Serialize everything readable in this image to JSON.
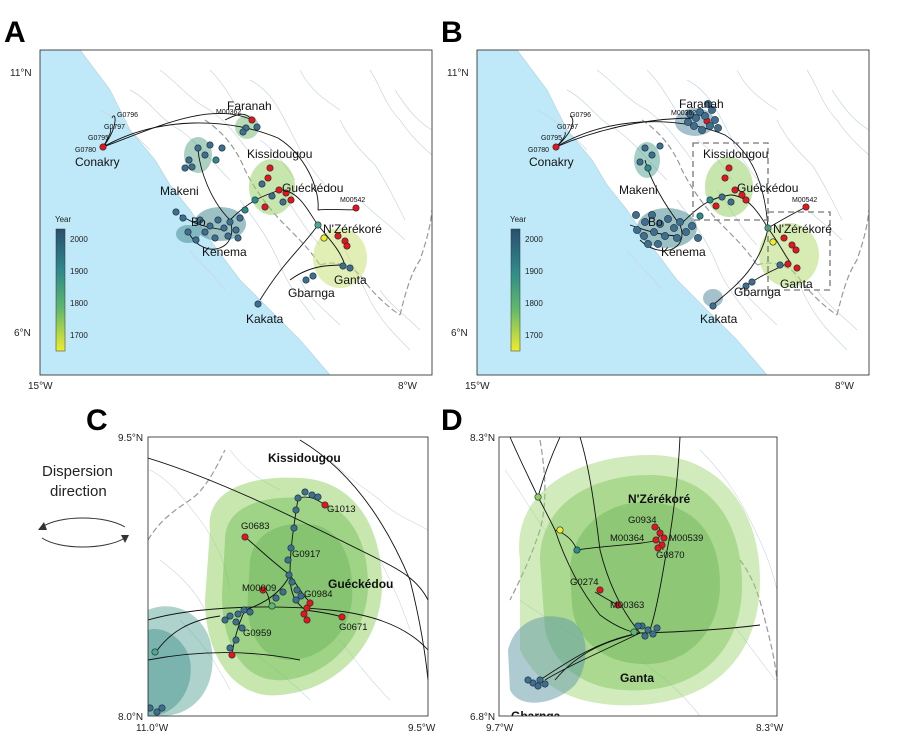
{
  "panels": {
    "A": {
      "letter": "A",
      "lat_tick_top": "11°N",
      "lat_tick_bottom": "6°N",
      "lon_tick_left": "15°W",
      "lon_tick_right": "8°W",
      "cities": {
        "conakry": "Conakry",
        "faranah": "Faranah",
        "kissidougou": "Kissidougou",
        "makeni": "Makeni",
        "gueckedou": "Guéckédou",
        "bo": "Bo",
        "kenema": "Kenema",
        "nzerekore": "N'Zérékoré",
        "ganta": "Ganta",
        "gbarnga": "Gbarnga",
        "kakata": "Kakata"
      },
      "sequences": {
        "g0796": "G0796",
        "g0797": "G0797",
        "g0795": "G0795",
        "g0780": "G0780",
        "m00362": "M00362",
        "m00542": "M00542"
      },
      "legend": {
        "title": "Year",
        "ticks": [
          "2000",
          "1900",
          "1800",
          "1700"
        ]
      }
    },
    "B": {
      "letter": "B",
      "lat_tick_top": "11°N",
      "lat_tick_bottom": "6°N",
      "lon_tick_left": "15°W",
      "lon_tick_right": "8°W",
      "cities": {
        "conakry": "Conakry",
        "faranah": "Faranah",
        "kissidougou": "Kissidougou",
        "makeni": "Makeni",
        "gueckedou": "Guéckédou",
        "bo": "Bo",
        "kenema": "Kenema",
        "nzerekore": "N'Zérékoré",
        "ganta": "Ganta",
        "gbarnga": "Gbarnga",
        "kakata": "Kakata"
      },
      "sequences": {
        "g0796": "G0796",
        "g0797": "G0797",
        "g0795": "G0795",
        "g0780": "G0780",
        "m00362": "M00362",
        "m00542": "M00542"
      },
      "legend": {
        "title": "Year",
        "ticks": [
          "2000",
          "1900",
          "1800",
          "1700"
        ]
      }
    },
    "C": {
      "letter": "C",
      "lat_tick_top": "9.5°N",
      "lat_tick_bottom": "8.0°N",
      "lon_tick_left": "11.0°W",
      "lon_tick_right": "9.5°W",
      "cities": {
        "kissidougou": "Kissidougou",
        "gueckedou": "Guéckédou"
      },
      "sequences": {
        "g1013": "G1013",
        "g0683": "G0683",
        "g0917": "G0917",
        "m00009": "M00009",
        "g0984": "G0984",
        "g0959": "G0959",
        "g0671": "G0671"
      }
    },
    "D": {
      "letter": "D",
      "lat_tick_top": "8.3°N",
      "lat_tick_bottom": "6.8°N",
      "lon_tick_left": "9.7°W",
      "lon_tick_right": "8.3°W",
      "cities": {
        "nzerekore": "N'Zérékoré",
        "ganta": "Ganta",
        "gbarnga": "Gbarnga"
      },
      "sequences": {
        "g0934": "G0934",
        "m00364": "M00364",
        "m00539": "M00539",
        "g0870": "G0870",
        "g0274": "G0274",
        "m00363": "M00363"
      }
    }
  },
  "dispersion_label": [
    "Dispersion",
    "direction"
  ],
  "colors": {
    "sea": "#bfe9f8",
    "land": "#ffffff",
    "node_recent": "#3f6f8f",
    "node_sampled": "#e8141c",
    "hpd_green": "#8fcf60",
    "hpd_teal": "#5ea89a",
    "legend_top": "#2a4f6e",
    "legend_bottom": "#f0ec2a"
  }
}
